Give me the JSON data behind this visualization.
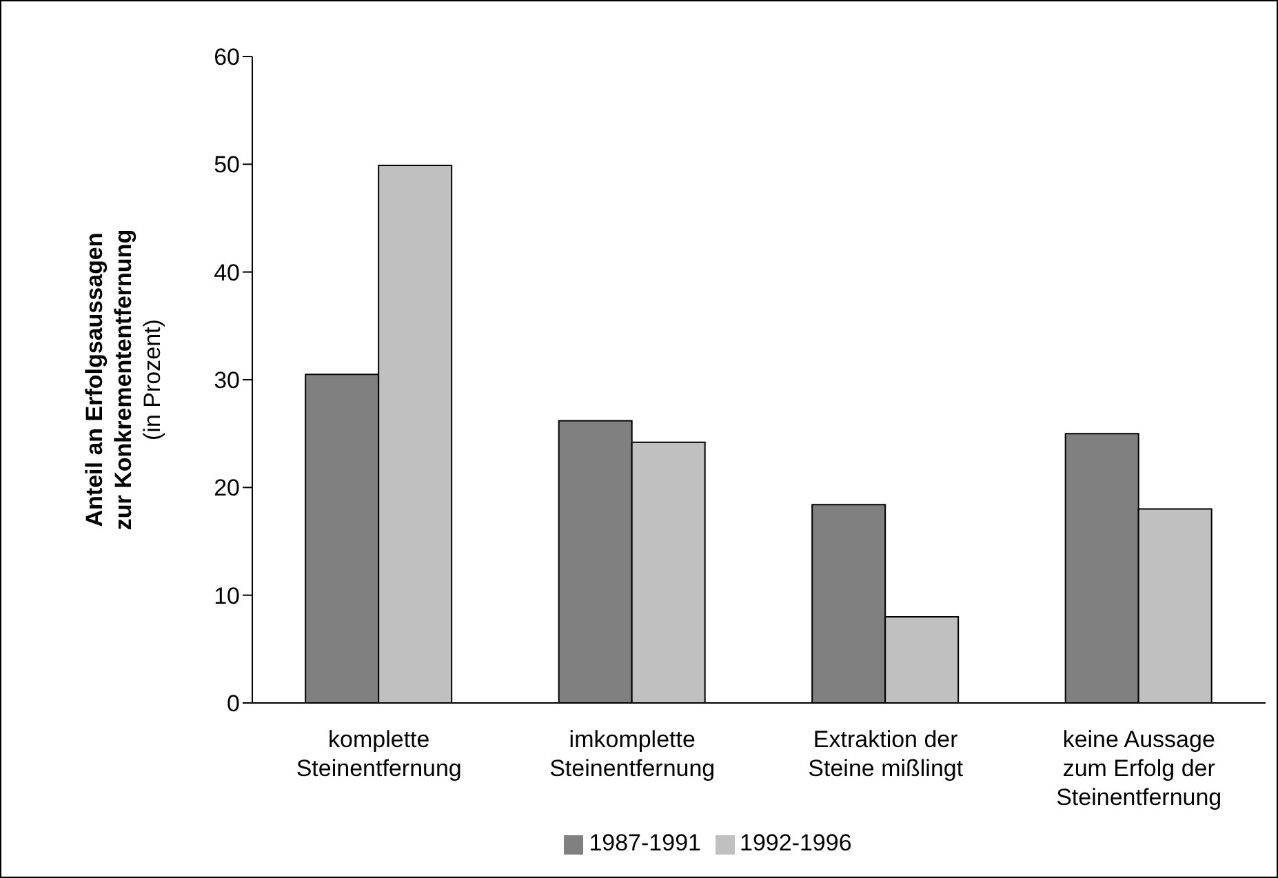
{
  "chart_data": {
    "type": "bar",
    "ylabel": "Anteil an Erfolgsaussagen\nzur Konkremententfernung\n(in Prozent)",
    "categories": [
      "komplette Steinentfernung",
      "imkomplette Steinentfernung",
      "Extraktion der Steine mißlingt",
      "keine Aussage zum Erfolg der Steinentfernung"
    ],
    "series": [
      {
        "name": "1987-1991",
        "color": "#808080",
        "values": [
          30.5,
          26.2,
          18.4,
          25.0
        ]
      },
      {
        "name": "1992-1996",
        "color": "#c0c0c0",
        "values": [
          49.9,
          24.2,
          8.0,
          18.0
        ]
      }
    ],
    "ylim": [
      0,
      60
    ],
    "yticks": [
      0,
      10,
      20,
      30,
      40,
      50,
      60
    ],
    "grid": false,
    "legend": "bottom"
  }
}
